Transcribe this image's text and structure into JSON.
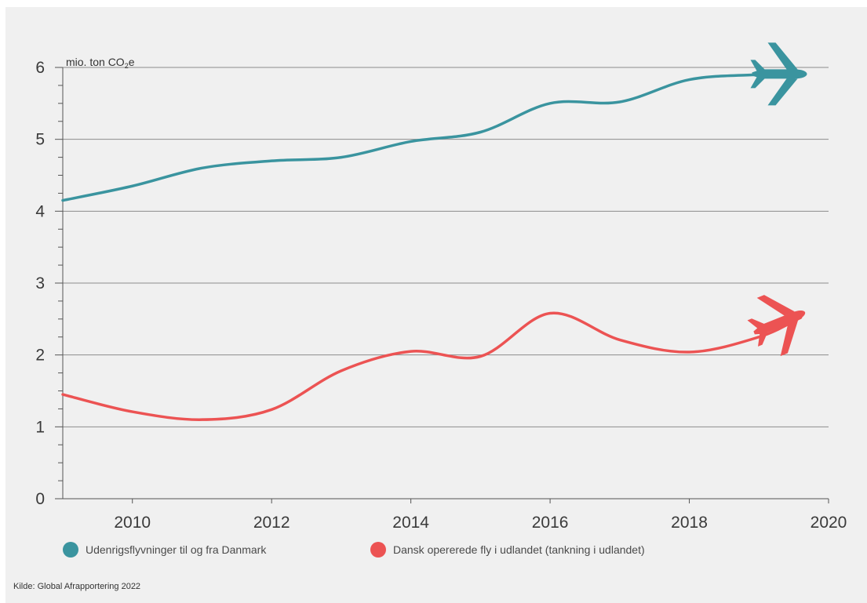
{
  "chart_data": {
    "type": "line",
    "ylabel_prefix": "mio. ton CO",
    "ylabel_sub": "2",
    "ylabel_suffix": "e",
    "ylim": [
      0,
      6
    ],
    "xlim": [
      2009,
      2020
    ],
    "yticks": [
      0,
      1,
      2,
      3,
      4,
      5,
      6
    ],
    "xticks": [
      2010,
      2012,
      2014,
      2016,
      2018,
      2020
    ],
    "grid": true,
    "series": [
      {
        "name": "Udenrigsflyvninger til og fra Danmark",
        "color": "#3a949f",
        "icon": "airplane-icon",
        "x": [
          2009,
          2010,
          2011,
          2012,
          2013,
          2014,
          2015,
          2016,
          2017,
          2018,
          2019,
          2019.6
        ],
        "values": [
          4.15,
          4.35,
          4.6,
          4.7,
          4.75,
          4.97,
          5.1,
          5.5,
          5.52,
          5.83,
          5.9,
          5.92
        ]
      },
      {
        "name": "Dansk opererede fly i udlandet (tankning i udlandet)",
        "color": "#ec5353",
        "icon": "airplane-icon",
        "x": [
          2009,
          2010,
          2011,
          2012,
          2013,
          2014,
          2015,
          2016,
          2017,
          2018,
          2019,
          2019.6
        ],
        "values": [
          1.45,
          1.21,
          1.1,
          1.24,
          1.78,
          2.05,
          1.98,
          2.58,
          2.21,
          2.04,
          2.25,
          2.52
        ]
      }
    ],
    "legend_position": "bottom",
    "source": "Kilde: Global Afrapportering 2022"
  }
}
